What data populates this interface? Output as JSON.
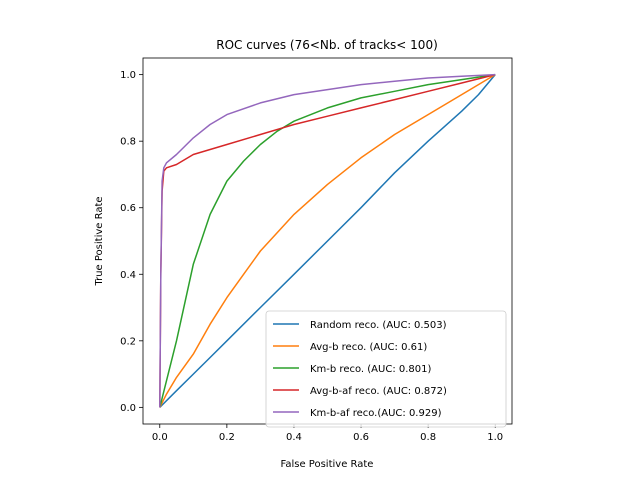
{
  "chart_data": {
    "type": "line",
    "title": "ROC curves (76<Nb. of tracks< 100)",
    "xlabel": "False Positive Rate",
    "ylabel": "True Positive Rate",
    "xlim": [
      -0.05,
      1.05
    ],
    "ylim": [
      -0.05,
      1.05
    ],
    "xticks": [
      "0.0",
      "0.2",
      "0.4",
      "0.6",
      "0.8",
      "1.0"
    ],
    "yticks": [
      "0.0",
      "0.2",
      "0.4",
      "0.6",
      "0.8",
      "1.0"
    ],
    "grid": false,
    "legend_position": "lower-right",
    "series": [
      {
        "name": "Random reco. (AUC: 0.503)",
        "color": "#1f77b4",
        "x": [
          0,
          0.05,
          0.1,
          0.15,
          0.2,
          0.3,
          0.4,
          0.5,
          0.6,
          0.7,
          0.8,
          0.9,
          0.95,
          1.0
        ],
        "y": [
          0,
          0.05,
          0.1,
          0.15,
          0.2,
          0.3,
          0.4,
          0.5,
          0.6,
          0.705,
          0.8,
          0.89,
          0.94,
          1.0
        ]
      },
      {
        "name": "Avg-b reco. (AUC: 0.61)",
        "color": "#ff7f0e",
        "x": [
          0,
          0.02,
          0.05,
          0.1,
          0.15,
          0.2,
          0.25,
          0.3,
          0.4,
          0.5,
          0.6,
          0.7,
          0.8,
          0.9,
          1.0
        ],
        "y": [
          0,
          0.04,
          0.09,
          0.16,
          0.25,
          0.33,
          0.4,
          0.47,
          0.58,
          0.67,
          0.75,
          0.82,
          0.88,
          0.94,
          1.0
        ]
      },
      {
        "name": "Km-b reco. (AUC: 0.801)",
        "color": "#2ca02c",
        "x": [
          0,
          0.02,
          0.05,
          0.1,
          0.15,
          0.2,
          0.25,
          0.3,
          0.35,
          0.4,
          0.5,
          0.6,
          0.7,
          0.8,
          0.9,
          1.0
        ],
        "y": [
          0,
          0.08,
          0.2,
          0.43,
          0.58,
          0.68,
          0.74,
          0.79,
          0.83,
          0.86,
          0.9,
          0.93,
          0.95,
          0.97,
          0.985,
          1.0
        ]
      },
      {
        "name": "Avg-b-af reco. (AUC: 0.872)",
        "color": "#d62728",
        "x": [
          0,
          0.003,
          0.007,
          0.012,
          0.02,
          0.05,
          0.1,
          0.15,
          0.2,
          0.3,
          0.4,
          0.5,
          0.6,
          0.7,
          0.8,
          0.9,
          1.0
        ],
        "y": [
          0,
          0.4,
          0.65,
          0.71,
          0.72,
          0.73,
          0.76,
          0.775,
          0.79,
          0.82,
          0.85,
          0.875,
          0.9,
          0.925,
          0.95,
          0.975,
          1.0
        ]
      },
      {
        "name": "Km-b-af reco.(AUC: 0.929)",
        "color": "#9467bd",
        "x": [
          0,
          0.003,
          0.007,
          0.012,
          0.02,
          0.05,
          0.1,
          0.15,
          0.2,
          0.3,
          0.4,
          0.5,
          0.6,
          0.7,
          0.8,
          0.9,
          1.0
        ],
        "y": [
          0,
          0.4,
          0.68,
          0.72,
          0.735,
          0.76,
          0.81,
          0.85,
          0.88,
          0.915,
          0.94,
          0.955,
          0.97,
          0.98,
          0.99,
          0.995,
          1.0
        ]
      }
    ]
  }
}
